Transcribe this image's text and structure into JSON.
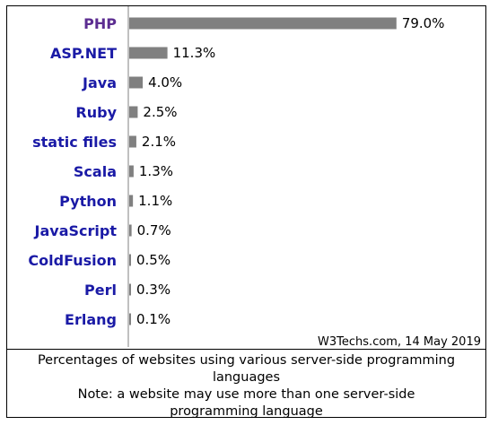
{
  "chart_data": {
    "type": "bar",
    "orientation": "horizontal",
    "categories": [
      "PHP",
      "ASP.NET",
      "Java",
      "Ruby",
      "static files",
      "Scala",
      "Python",
      "JavaScript",
      "ColdFusion",
      "Perl",
      "Erlang"
    ],
    "values": [
      79.0,
      11.3,
      4.0,
      2.5,
      2.1,
      1.3,
      1.1,
      0.7,
      0.5,
      0.3,
      0.1
    ],
    "value_labels": [
      "79.0%",
      "11.3%",
      "4.0%",
      "2.5%",
      "2.1%",
      "1.3%",
      "1.1%",
      "0.7%",
      "0.5%",
      "0.3%",
      "0.1%"
    ],
    "xlim": [
      0,
      100
    ],
    "grid": false,
    "colors": {
      "bar": "#808080",
      "label_first": "#5c2d91",
      "label": "#1a1aa6",
      "axis": "#808080"
    }
  },
  "source": "W3Techs.com, 14 May 2019",
  "caption": {
    "line1": "Percentages of websites using various server-side programming languages",
    "line2": "Note: a website may use more than one server-side programming language"
  }
}
